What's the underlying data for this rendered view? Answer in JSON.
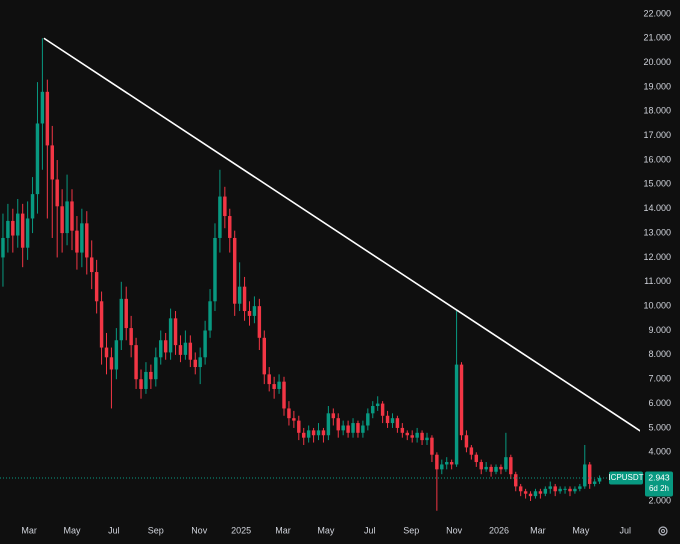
{
  "chart_data": {
    "type": "candlestick",
    "open": [
      12.0,
      12.8,
      13.5,
      12.9,
      13.8,
      12.4,
      13.6,
      14.6,
      17.5,
      18.8,
      16.6,
      15.2,
      14.1,
      13.0,
      14.3,
      13.1,
      12.2,
      13.4,
      12.0,
      11.4,
      10.2,
      8.3,
      7.9,
      7.4,
      8.6,
      10.3,
      9.1,
      8.4,
      7.0,
      6.6,
      7.3,
      7.0,
      7.9,
      8.6,
      8.1,
      9.5,
      8.4,
      8.0,
      8.5,
      7.8,
      7.5,
      7.9,
      9.0,
      10.2,
      12.8,
      14.5,
      13.7,
      12.8,
      10.1,
      10.8,
      9.8,
      9.6,
      10.0,
      8.7,
      7.2,
      6.8,
      6.6,
      6.9,
      5.8,
      5.4,
      5.3,
      4.8,
      4.6,
      4.9,
      4.7,
      4.9,
      4.7,
      5.6,
      5.4,
      4.9,
      5.1,
      4.8,
      5.2,
      4.8,
      5.1,
      5.6,
      5.9,
      6.0,
      5.5,
      5.2,
      5.4,
      5.0,
      4.8,
      4.7,
      4.6,
      4.8,
      4.5,
      4.6,
      3.9,
      3.3,
      3.5,
      3.6,
      3.5,
      7.6,
      4.7,
      4.2,
      3.9,
      3.6,
      3.3,
      3.4,
      3.2,
      3.4,
      3.3,
      3.8,
      3.1,
      2.6,
      2.4,
      2.3,
      2.2,
      2.4,
      2.3,
      2.5,
      2.6,
      2.4,
      2.5,
      2.5,
      2.4,
      2.5,
      2.6,
      3.5,
      2.7,
      2.8
    ],
    "high": [
      13.8,
      14.2,
      14.0,
      14.4,
      14.2,
      14.3,
      15.3,
      19.2,
      21.0,
      19.3,
      17.4,
      16.0,
      14.8,
      15.4,
      14.8,
      13.7,
      14.0,
      13.9,
      12.7,
      11.9,
      10.6,
      8.9,
      8.3,
      9.1,
      11.0,
      10.8,
      9.6,
      8.7,
      7.4,
      7.7,
      7.6,
      8.3,
      9.0,
      8.9,
      9.9,
      9.8,
      8.8,
      9.0,
      8.8,
      8.1,
      8.3,
      9.4,
      10.7,
      13.4,
      15.6,
      14.9,
      14.0,
      13.1,
      11.8,
      11.2,
      10.2,
      10.4,
      10.3,
      9.0,
      7.5,
      7.1,
      7.2,
      7.1,
      6.1,
      5.7,
      5.5,
      5.0,
      5.1,
      5.0,
      5.2,
      5.0,
      5.9,
      5.8,
      5.6,
      5.3,
      5.3,
      5.4,
      5.3,
      5.3,
      5.8,
      6.1,
      6.3,
      6.1,
      5.7,
      5.6,
      5.5,
      5.2,
      4.9,
      4.9,
      5.0,
      4.9,
      4.8,
      4.7,
      4.0,
      3.7,
      3.8,
      3.7,
      9.8,
      7.7,
      4.9,
      4.3,
      4.0,
      3.7,
      3.6,
      3.5,
      3.5,
      3.5,
      4.8,
      3.9,
      3.2,
      2.7,
      2.5,
      2.4,
      2.5,
      2.5,
      2.6,
      2.8,
      2.7,
      2.6,
      2.6,
      2.6,
      2.6,
      2.7,
      4.3,
      3.6,
      2.9,
      3.05
    ],
    "low": [
      10.8,
      12.2,
      12.2,
      12.4,
      11.6,
      11.9,
      13.0,
      13.8,
      15.6,
      13.6,
      12.8,
      12.0,
      12.2,
      12.5,
      12.3,
      11.5,
      11.6,
      11.3,
      10.7,
      9.7,
      7.6,
      7.2,
      5.8,
      7.0,
      8.2,
      8.6,
      7.9,
      6.6,
      6.2,
      6.4,
      6.6,
      6.7,
      7.6,
      7.8,
      7.8,
      8.0,
      7.7,
      7.8,
      7.5,
      7.2,
      6.8,
      7.6,
      8.7,
      9.8,
      12.2,
      13.2,
      12.2,
      9.6,
      9.8,
      9.4,
      9.2,
      9.3,
      8.2,
      6.8,
      6.5,
      6.2,
      6.4,
      5.5,
      5.1,
      5.0,
      4.5,
      4.3,
      4.4,
      4.4,
      4.5,
      4.4,
      4.5,
      5.1,
      4.6,
      4.7,
      4.6,
      4.6,
      4.6,
      4.6,
      4.9,
      5.4,
      5.7,
      5.2,
      5.0,
      5.0,
      4.8,
      4.6,
      4.5,
      4.4,
      4.4,
      4.3,
      4.3,
      3.6,
      1.6,
      3.1,
      3.3,
      3.3,
      3.4,
      4.5,
      4.0,
      3.7,
      3.4,
      3.1,
      3.2,
      3.0,
      3.1,
      3.1,
      3.2,
      2.9,
      2.4,
      2.2,
      2.1,
      2.0,
      2.1,
      2.1,
      2.2,
      2.3,
      2.2,
      2.3,
      2.3,
      2.2,
      2.3,
      2.4,
      2.5,
      2.5,
      2.6,
      2.7
    ],
    "close": [
      12.8,
      13.5,
      12.9,
      13.8,
      12.4,
      13.6,
      14.6,
      17.5,
      18.8,
      16.6,
      15.2,
      14.1,
      13.0,
      14.3,
      13.1,
      12.2,
      13.4,
      12.0,
      11.4,
      10.2,
      8.3,
      7.9,
      7.4,
      8.6,
      10.3,
      9.1,
      8.4,
      7.0,
      6.6,
      7.3,
      7.0,
      7.9,
      8.6,
      8.1,
      9.5,
      8.4,
      8.0,
      8.5,
      7.8,
      7.5,
      7.9,
      9.0,
      10.2,
      12.8,
      14.5,
      13.7,
      12.8,
      10.1,
      10.8,
      9.8,
      9.6,
      10.0,
      8.7,
      7.2,
      6.8,
      6.6,
      6.9,
      5.8,
      5.4,
      5.3,
      4.8,
      4.6,
      4.9,
      4.7,
      4.9,
      4.7,
      5.6,
      5.4,
      4.9,
      5.1,
      4.8,
      5.2,
      4.8,
      5.1,
      5.6,
      5.9,
      6.0,
      5.5,
      5.2,
      5.4,
      5.0,
      4.8,
      4.7,
      4.6,
      4.8,
      4.5,
      4.6,
      3.9,
      3.3,
      3.5,
      3.6,
      3.5,
      7.6,
      4.7,
      4.2,
      3.9,
      3.6,
      3.3,
      3.4,
      3.2,
      3.4,
      3.3,
      3.8,
      3.1,
      2.6,
      2.4,
      2.3,
      2.2,
      2.4,
      2.3,
      2.5,
      2.6,
      2.4,
      2.5,
      2.5,
      2.4,
      2.5,
      2.6,
      3.5,
      2.7,
      2.8,
      2.943
    ],
    "up_color": "#089981",
    "down_color": "#f23645",
    "xlim": [
      -0.6,
      129.2
    ],
    "xticks": [
      {
        "value": 5.3,
        "label": "Mar"
      },
      {
        "value": 14.0,
        "label": "May"
      },
      {
        "value": 22.5,
        "label": "Jul"
      },
      {
        "value": 31.0,
        "label": "Sep"
      },
      {
        "value": 39.8,
        "label": "Nov"
      },
      {
        "value": 48.3,
        "label": "2025"
      },
      {
        "value": 56.8,
        "label": "Mar"
      },
      {
        "value": 65.5,
        "label": "May"
      },
      {
        "value": 74.4,
        "label": "Jul"
      },
      {
        "value": 82.8,
        "label": "Sep"
      },
      {
        "value": 91.5,
        "label": "Nov"
      },
      {
        "value": 100.6,
        "label": "2026"
      },
      {
        "value": 108.5,
        "label": "Mar"
      },
      {
        "value": 117.2,
        "label": "May"
      },
      {
        "value": 126.2,
        "label": "Jul"
      }
    ],
    "ylim": [
      1.22,
      22.57
    ],
    "yticks": [
      {
        "value": 2,
        "label": "2.000"
      },
      {
        "value": 3,
        "label": "3.000"
      },
      {
        "value": 4,
        "label": "4.000"
      },
      {
        "value": 5,
        "label": "5.000"
      },
      {
        "value": 6,
        "label": "6.000"
      },
      {
        "value": 7,
        "label": "7.000"
      },
      {
        "value": 8,
        "label": "8.000"
      },
      {
        "value": 9,
        "label": "9.000"
      },
      {
        "value": 10,
        "label": "10.000"
      },
      {
        "value": 11,
        "label": "11.000"
      },
      {
        "value": 12,
        "label": "12.000"
      },
      {
        "value": 13,
        "label": "13.000"
      },
      {
        "value": 14,
        "label": "14.000"
      },
      {
        "value": 15,
        "label": "15.000"
      },
      {
        "value": 16,
        "label": "16.000"
      },
      {
        "value": 17,
        "label": "17.000"
      },
      {
        "value": 18,
        "label": "18.000"
      },
      {
        "value": 19,
        "label": "19.000"
      },
      {
        "value": 20,
        "label": "20.000"
      },
      {
        "value": 21,
        "label": "21.000"
      },
      {
        "value": 22,
        "label": "22.000"
      }
    ],
    "trendline": {
      "x": [
        8.3,
        130.2
      ],
      "y": [
        21,
        4.75
      ],
      "color": "#ffffff"
    },
    "symbol": "ICPUSDT",
    "last_price": 2.943,
    "countdown": "6d 2h"
  }
}
